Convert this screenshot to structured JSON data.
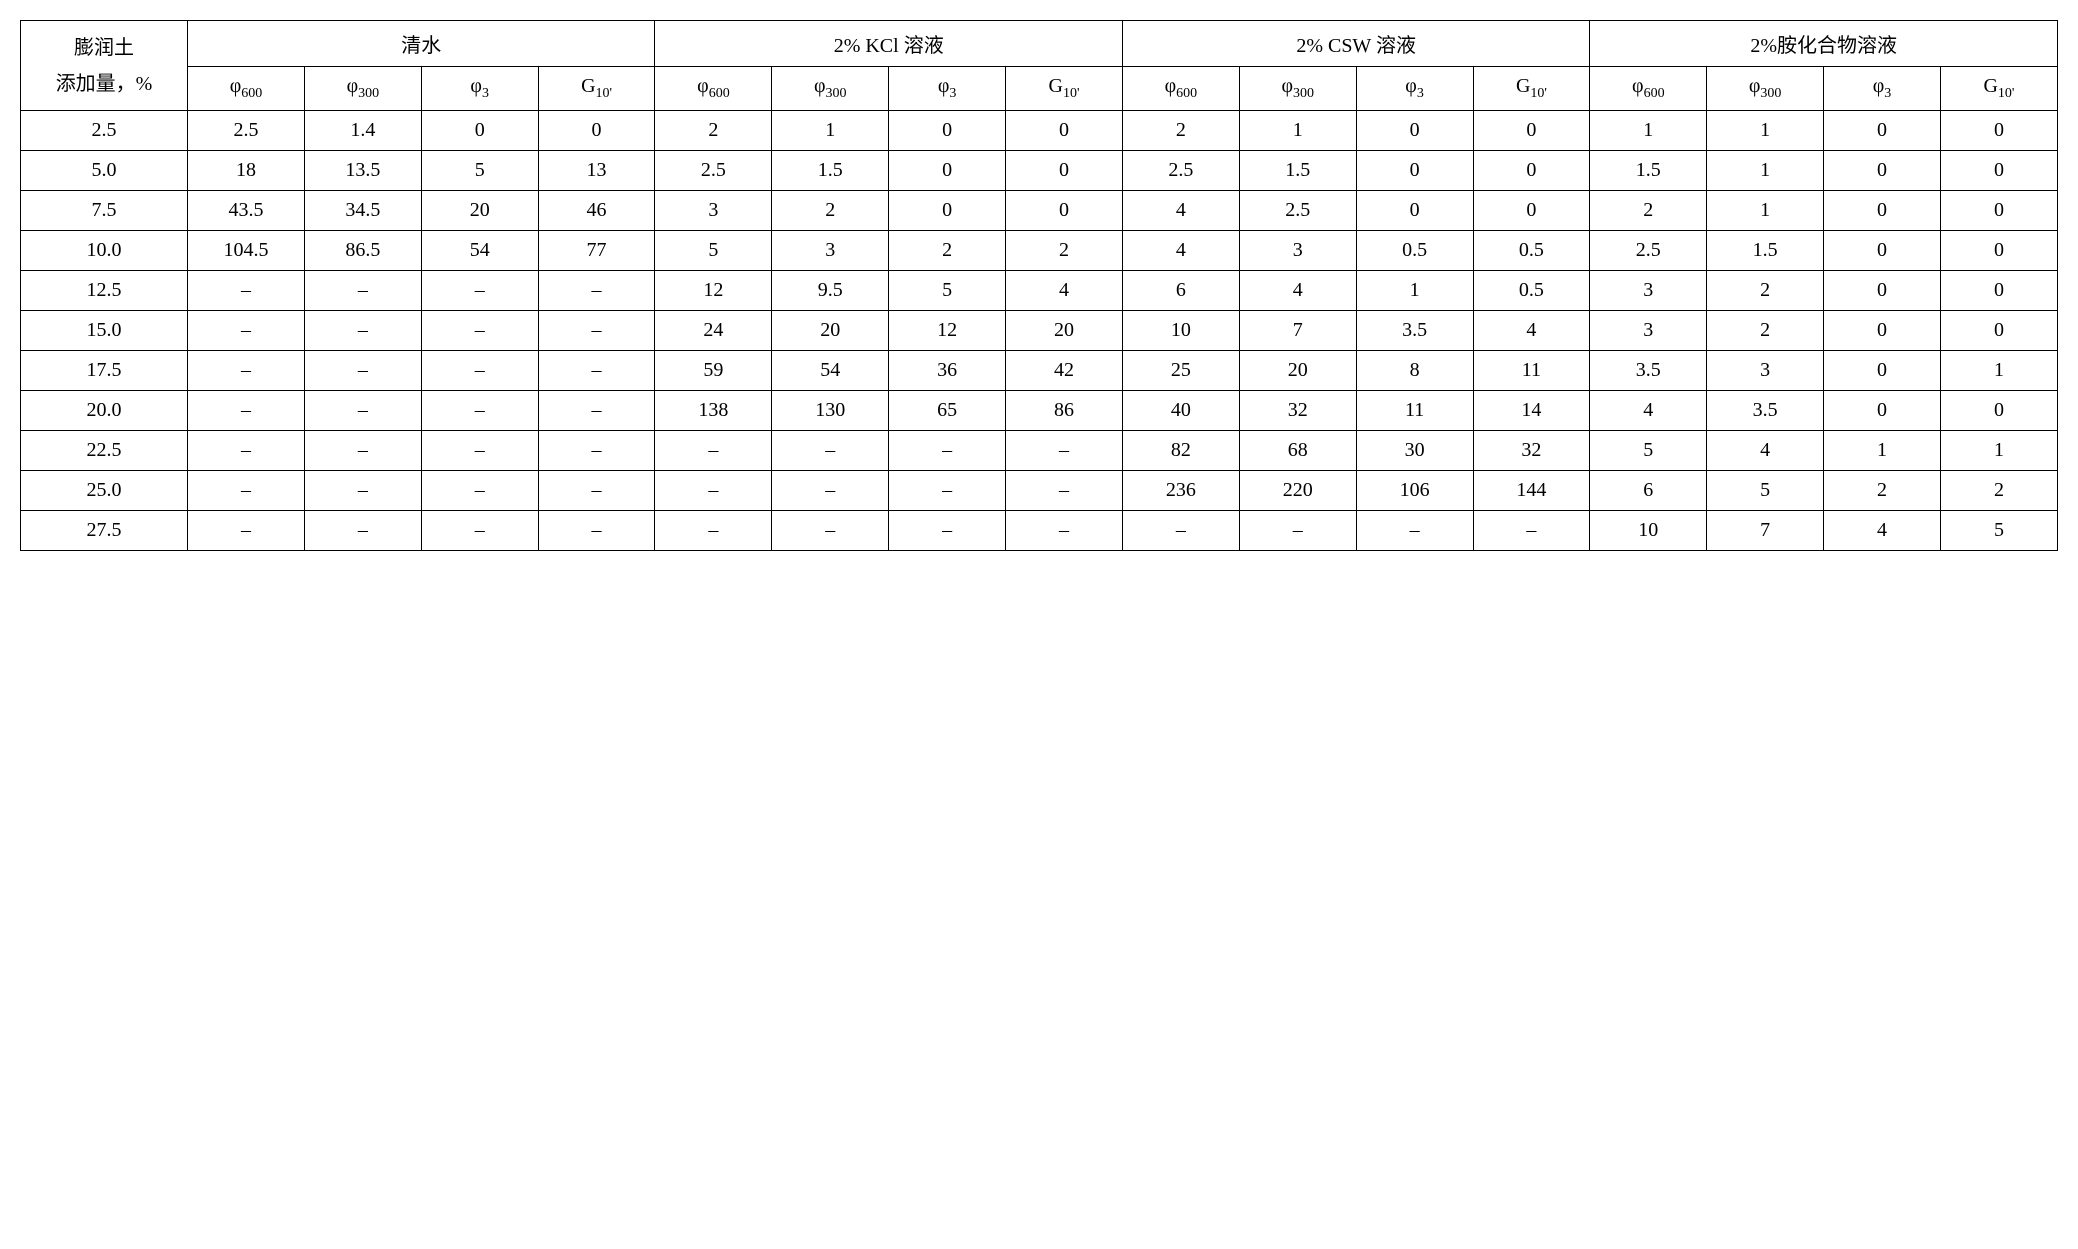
{
  "table": {
    "type": "table",
    "background_color": "#ffffff",
    "border_color": "#000000",
    "font_family": "Times New Roman, SimSun, serif",
    "base_fontsize": 20,
    "sub_fontsize": 14,
    "row_header_top": "膨润土",
    "row_header_bottom": "添加量，%",
    "group_headers": [
      "清水",
      "2% KCl 溶液",
      "2% CSW 溶液",
      "2%胺化合物溶液"
    ],
    "sub_headers": [
      {
        "sym": "φ",
        "sub": "600"
      },
      {
        "sym": "φ",
        "sub": "300"
      },
      {
        "sym": "φ",
        "sub": "3"
      },
      {
        "sym": "G",
        "sub": "10'"
      }
    ],
    "rows": [
      {
        "label": "2.5",
        "cells": [
          "2.5",
          "1.4",
          "0",
          "0",
          "2",
          "1",
          "0",
          "0",
          "2",
          "1",
          "0",
          "0",
          "1",
          "1",
          "0",
          "0"
        ]
      },
      {
        "label": "5.0",
        "cells": [
          "18",
          "13.5",
          "5",
          "13",
          "2.5",
          "1.5",
          "0",
          "0",
          "2.5",
          "1.5",
          "0",
          "0",
          "1.5",
          "1",
          "0",
          "0"
        ]
      },
      {
        "label": "7.5",
        "cells": [
          "43.5",
          "34.5",
          "20",
          "46",
          "3",
          "2",
          "0",
          "0",
          "4",
          "2.5",
          "0",
          "0",
          "2",
          "1",
          "0",
          "0"
        ]
      },
      {
        "label": "10.0",
        "cells": [
          "104.5",
          "86.5",
          "54",
          "77",
          "5",
          "3",
          "2",
          "2",
          "4",
          "3",
          "0.5",
          "0.5",
          "2.5",
          "1.5",
          "0",
          "0"
        ]
      },
      {
        "label": "12.5",
        "cells": [
          "–",
          "–",
          "–",
          "–",
          "12",
          "9.5",
          "5",
          "4",
          "6",
          "4",
          "1",
          "0.5",
          "3",
          "2",
          "0",
          "0"
        ]
      },
      {
        "label": "15.0",
        "cells": [
          "–",
          "–",
          "–",
          "–",
          "24",
          "20",
          "12",
          "20",
          "10",
          "7",
          "3.5",
          "4",
          "3",
          "2",
          "0",
          "0"
        ]
      },
      {
        "label": "17.5",
        "cells": [
          "–",
          "–",
          "–",
          "–",
          "59",
          "54",
          "36",
          "42",
          "25",
          "20",
          "8",
          "11",
          "3.5",
          "3",
          "0",
          "1"
        ]
      },
      {
        "label": "20.0",
        "cells": [
          "–",
          "–",
          "–",
          "–",
          "138",
          "130",
          "65",
          "86",
          "40",
          "32",
          "11",
          "14",
          "4",
          "3.5",
          "0",
          "0"
        ]
      },
      {
        "label": "22.5",
        "cells": [
          "–",
          "–",
          "–",
          "–",
          "–",
          "–",
          "–",
          "–",
          "82",
          "68",
          "30",
          "32",
          "5",
          "4",
          "1",
          "1"
        ]
      },
      {
        "label": "25.0",
        "cells": [
          "–",
          "–",
          "–",
          "–",
          "–",
          "–",
          "–",
          "–",
          "236",
          "220",
          "106",
          "144",
          "6",
          "5",
          "2",
          "2"
        ]
      },
      {
        "label": "27.5",
        "cells": [
          "–",
          "–",
          "–",
          "–",
          "–",
          "–",
          "–",
          "–",
          "–",
          "–",
          "–",
          "–",
          "10",
          "7",
          "4",
          "5"
        ]
      }
    ]
  }
}
